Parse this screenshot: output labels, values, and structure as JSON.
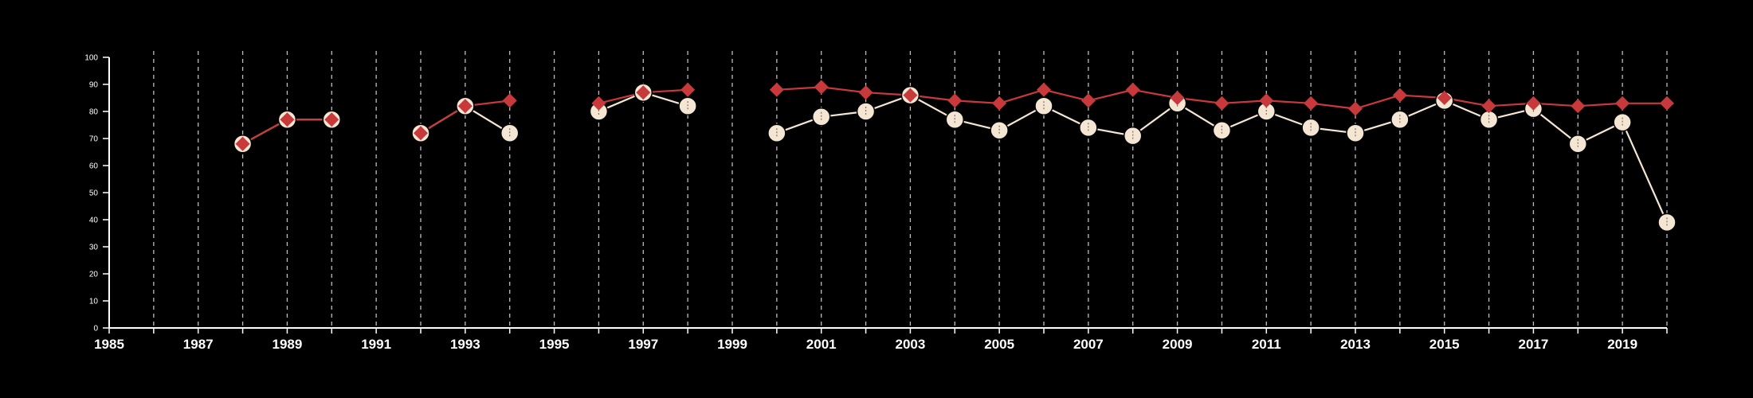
{
  "chart_data": {
    "type": "line",
    "xlim": [
      1985,
      2020
    ],
    "ylim": [
      0,
      100
    ],
    "yticks": [
      0,
      10,
      20,
      30,
      40,
      50,
      60,
      70,
      80,
      90,
      100
    ],
    "xticks_labeled": [
      1985,
      1987,
      1989,
      1991,
      1993,
      1995,
      1997,
      1999,
      2001,
      2003,
      2005,
      2007,
      2009,
      2011,
      2013,
      2015,
      2017,
      2019
    ],
    "grid": "vertical dashed lines at every year",
    "legend": "none",
    "series": [
      {
        "marker": "circle",
        "color": "#f5e6d3",
        "points": [
          {
            "x": 1988,
            "y": 68
          },
          {
            "x": 1989,
            "y": 77
          },
          {
            "x": 1990,
            "y": 77
          },
          {
            "x": 1992,
            "y": 72
          },
          {
            "x": 1993,
            "y": 82
          },
          {
            "x": 1994,
            "y": 72
          },
          {
            "x": 1996,
            "y": 80
          },
          {
            "x": 1997,
            "y": 87
          },
          {
            "x": 1998,
            "y": 82
          },
          {
            "x": 2000,
            "y": 72
          },
          {
            "x": 2001,
            "y": 78
          },
          {
            "x": 2002,
            "y": 80
          },
          {
            "x": 2003,
            "y": 86
          },
          {
            "x": 2004,
            "y": 77
          },
          {
            "x": 2005,
            "y": 73
          },
          {
            "x": 2006,
            "y": 82
          },
          {
            "x": 2007,
            "y": 74
          },
          {
            "x": 2008,
            "y": 71
          },
          {
            "x": 2009,
            "y": 83
          },
          {
            "x": 2010,
            "y": 73
          },
          {
            "x": 2011,
            "y": 80
          },
          {
            "x": 2012,
            "y": 74
          },
          {
            "x": 2013,
            "y": 72
          },
          {
            "x": 2014,
            "y": 77
          },
          {
            "x": 2015,
            "y": 84
          },
          {
            "x": 2016,
            "y": 77
          },
          {
            "x": 2017,
            "y": 81
          },
          {
            "x": 2018,
            "y": 68
          },
          {
            "x": 2019,
            "y": 76
          },
          {
            "x": 2020,
            "y": 39
          }
        ]
      },
      {
        "marker": "diamond",
        "color": "#c8393b",
        "points": [
          {
            "x": 1988,
            "y": 68
          },
          {
            "x": 1989,
            "y": 77
          },
          {
            "x": 1990,
            "y": 77
          },
          {
            "x": 1992,
            "y": 72
          },
          {
            "x": 1993,
            "y": 82
          },
          {
            "x": 1994,
            "y": 84
          },
          {
            "x": 1996,
            "y": 83
          },
          {
            "x": 1997,
            "y": 87
          },
          {
            "x": 1998,
            "y": 88
          },
          {
            "x": 2000,
            "y": 88
          },
          {
            "x": 2001,
            "y": 89
          },
          {
            "x": 2002,
            "y": 87
          },
          {
            "x": 2003,
            "y": 86
          },
          {
            "x": 2004,
            "y": 84
          },
          {
            "x": 2005,
            "y": 83
          },
          {
            "x": 2006,
            "y": 88
          },
          {
            "x": 2007,
            "y": 84
          },
          {
            "x": 2008,
            "y": 88
          },
          {
            "x": 2009,
            "y": 85
          },
          {
            "x": 2010,
            "y": 83
          },
          {
            "x": 2011,
            "y": 84
          },
          {
            "x": 2012,
            "y": 83
          },
          {
            "x": 2013,
            "y": 81
          },
          {
            "x": 2014,
            "y": 86
          },
          {
            "x": 2015,
            "y": 85
          },
          {
            "x": 2016,
            "y": 82
          },
          {
            "x": 2017,
            "y": 83
          },
          {
            "x": 2018,
            "y": 82
          },
          {
            "x": 2019,
            "y": 83
          },
          {
            "x": 2020,
            "y": 83
          }
        ]
      }
    ]
  }
}
